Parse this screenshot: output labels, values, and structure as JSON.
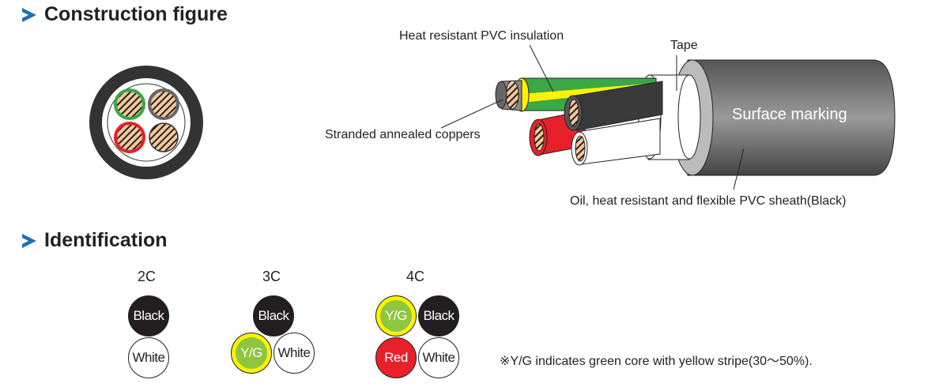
{
  "construction": {
    "title": "Construction figure",
    "labels": {
      "insulation": "Heat resistant PVC insulation",
      "tape": "Tape",
      "conductor": "Stranded annealed coppers",
      "marking": "Surface marking",
      "sheath": "Oil, heat resistant and flexible PVC sheath(Black)"
    }
  },
  "identification": {
    "title": "Identification",
    "groups": [
      {
        "label": "2C",
        "cores": [
          "Black",
          "White"
        ]
      },
      {
        "label": "3C",
        "cores": [
          "Black",
          "Y/G",
          "White"
        ]
      },
      {
        "label": "4C",
        "cores": [
          "Y/G",
          "Black",
          "Red",
          "White"
        ]
      }
    ],
    "note": "※Y/G indicates green core with yellow stripe(30～50%)."
  },
  "colors": {
    "accent": "#1f6fb9",
    "black": "#231f20",
    "red": "#e8202a",
    "green": "#8dc63f",
    "yellow": "#fff200",
    "copper": "#f5c89a"
  }
}
